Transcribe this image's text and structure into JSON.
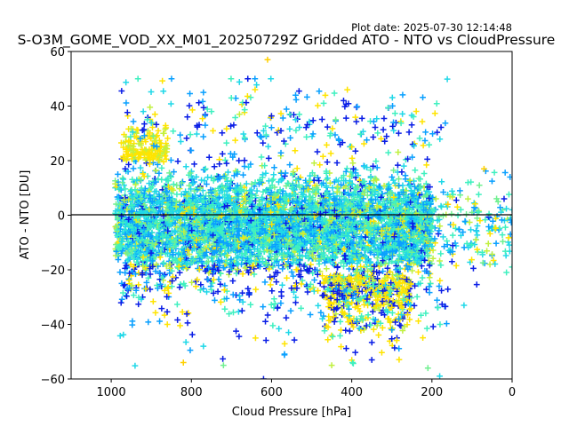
{
  "plot_date": "Plot date: 2025-07-30 12:14:48",
  "chart_data": {
    "type": "scatter",
    "title": "S-O3M_GOME_VOD_XX_M01_20250729Z Gridded ATO - NTO vs CloudPressure",
    "xlabel": "Cloud Pressure [hPa]",
    "ylabel": "ATO - NTO [DU]",
    "xlim": [
      1100,
      0
    ],
    "ylim": [
      -60,
      60
    ],
    "x_inverted": true,
    "xticks": [
      1000,
      800,
      600,
      400,
      200,
      0
    ],
    "yticks": [
      -60,
      -40,
      -20,
      0,
      20,
      40,
      60
    ],
    "xtick_labels": [
      "1000",
      "800",
      "600",
      "400",
      "200",
      "0"
    ],
    "ytick_labels": [
      "−60",
      "−40",
      "−20",
      "0",
      "20",
      "40",
      "60"
    ],
    "reference_line_y": 0,
    "marker": "+",
    "grid": false,
    "legend": "none",
    "palette": [
      "#0a1ee6",
      "#0aa0ff",
      "#20d8e8",
      "#40f0c0",
      "#70f090",
      "#c0f040",
      "#ffe400",
      "#ffd000"
    ],
    "point_sample": {
      "description_free_points": true,
      "series": [
        {
          "x": 965,
          "y": 17
        },
        {
          "x": 960,
          "y": -27
        },
        {
          "x": 920,
          "y": 38
        },
        {
          "x": 910,
          "y": 35
        },
        {
          "x": 895,
          "y": 29
        },
        {
          "x": 870,
          "y": 30
        },
        {
          "x": 860,
          "y": -40
        },
        {
          "x": 820,
          "y": -54
        },
        {
          "x": 810,
          "y": 36
        },
        {
          "x": 770,
          "y": 45
        },
        {
          "x": 770,
          "y": -48
        },
        {
          "x": 750,
          "y": 38
        },
        {
          "x": 720,
          "y": -55
        },
        {
          "x": 680,
          "y": 37
        },
        {
          "x": 640,
          "y": -45
        },
        {
          "x": 610,
          "y": 57
        },
        {
          "x": 620,
          "y": -60
        },
        {
          "x": 540,
          "y": 44
        },
        {
          "x": 540,
          "y": 35
        },
        {
          "x": 470,
          "y": 41
        },
        {
          "x": 440,
          "y": 35
        },
        {
          "x": 450,
          "y": -55
        },
        {
          "x": 400,
          "y": 25
        },
        {
          "x": 400,
          "y": -40
        },
        {
          "x": 350,
          "y": -53
        },
        {
          "x": 300,
          "y": -42
        },
        {
          "x": 270,
          "y": 18
        },
        {
          "x": 230,
          "y": 10
        },
        {
          "x": 210,
          "y": -56
        },
        {
          "x": 190,
          "y": 6
        },
        {
          "x": 180,
          "y": -24
        },
        {
          "x": 160,
          "y": 4
        },
        {
          "x": 150,
          "y": -17
        },
        {
          "x": 130,
          "y": 9
        },
        {
          "x": 120,
          "y": -33
        },
        {
          "x": 110,
          "y": 12
        },
        {
          "x": 100,
          "y": 1
        },
        {
          "x": 90,
          "y": -9
        },
        {
          "x": 80,
          "y": -2
        },
        {
          "x": 70,
          "y": 17
        },
        {
          "x": 20,
          "y": 6
        },
        {
          "x": 5,
          "y": 14
        },
        {
          "x": 0,
          "y": 2
        },
        {
          "x": 0,
          "y": -19
        }
      ]
    }
  }
}
